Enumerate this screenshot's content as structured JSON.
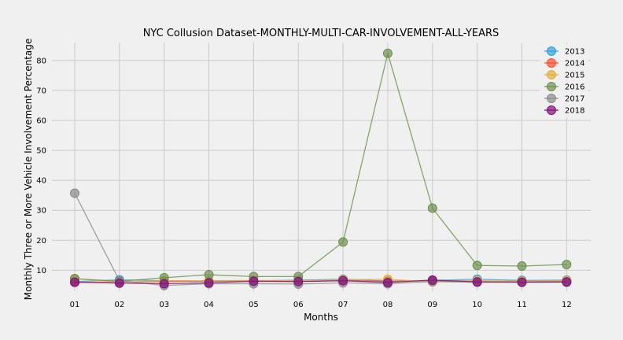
{
  "chart_data": {
    "type": "line",
    "title": "NYC Collusion Dataset-MONTHLY-MULTI-CAR-INVOLVEMENT-ALL-YEARS",
    "xlabel": "Months",
    "ylabel": "Monthly Three or More Vehicle Involvement Percentage",
    "categories": [
      "01",
      "02",
      "03",
      "04",
      "05",
      "06",
      "07",
      "08",
      "09",
      "10",
      "11",
      "12"
    ],
    "ylim": [
      3,
      86
    ],
    "yticks": [
      10,
      20,
      30,
      40,
      50,
      60,
      70,
      80
    ],
    "grid": true,
    "legend_position": "top-right",
    "series": [
      {
        "name": "2013",
        "color": "#30a2da",
        "values": [
          6.2,
          6.8,
          6.5,
          6.3,
          6.4,
          6.7,
          7.0,
          6.4,
          6.6,
          7.0,
          6.6,
          6.7
        ]
      },
      {
        "name": "2014",
        "color": "#fc4f30",
        "values": [
          6.0,
          6.0,
          6.2,
          6.4,
          6.5,
          6.3,
          6.6,
          6.3,
          6.5,
          6.4,
          6.3,
          6.4
        ]
      },
      {
        "name": "2015",
        "color": "#e5ae38",
        "values": [
          7.2,
          6.0,
          6.5,
          6.5,
          6.6,
          6.5,
          6.8,
          7.0,
          6.1,
          6.5,
          6.3,
          6.5
        ]
      },
      {
        "name": "2016",
        "color": "#6d904f",
        "values": [
          7.2,
          6.3,
          7.5,
          8.5,
          7.9,
          7.9,
          19.4,
          82.4,
          30.7,
          11.6,
          11.4,
          11.9
        ]
      },
      {
        "name": "2017",
        "color": "#8b8b8b",
        "values": [
          35.7,
          6.5,
          4.9,
          5.5,
          5.5,
          5.4,
          5.8,
          5.5,
          6.2,
          6.0,
          6.0,
          6.0
        ]
      },
      {
        "name": "2018",
        "color": "#810f7c",
        "values": [
          6.0,
          5.7,
          5.5,
          5.8,
          6.3,
          6.2,
          6.5,
          5.9,
          6.7,
          6.1,
          6.0,
          6.1
        ]
      }
    ]
  }
}
